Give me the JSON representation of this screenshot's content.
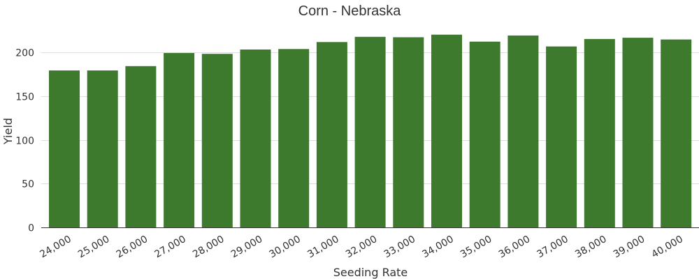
{
  "chart_data": {
    "type": "bar",
    "title": "Corn - Nebraska",
    "xlabel": "Seeding Rate",
    "ylabel": "Yield",
    "categories": [
      "24,000",
      "25,000",
      "26,000",
      "27,000",
      "28,000",
      "29,000",
      "30,000",
      "31,000",
      "32,000",
      "33,000",
      "34,000",
      "35,000",
      "36,000",
      "37,000",
      "38,000",
      "39,000",
      "40,000"
    ],
    "values": [
      179.5,
      179.5,
      184.5,
      199.5,
      198.5,
      203.5,
      204,
      212,
      218,
      217.5,
      220.5,
      212.5,
      219.5,
      207,
      215.5,
      217,
      215
    ],
    "ylim": [
      0,
      233
    ],
    "yticks": [
      0,
      50,
      100,
      150,
      200
    ],
    "grid": true,
    "legend": "none",
    "bar_color": "#3d7a2e"
  }
}
